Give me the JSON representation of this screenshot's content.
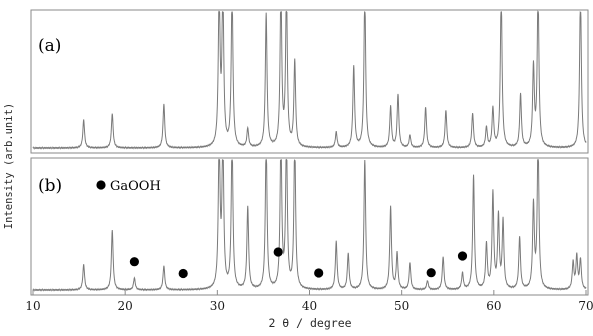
{
  "chart_data": {
    "type": "line",
    "xlabel": "2 θ / degree",
    "ylabel": "Intensity (arb.unit)",
    "xlim": [
      10,
      70
    ],
    "xticks": [
      10,
      20,
      30,
      40,
      50,
      60,
      70
    ],
    "grid": false,
    "panels": [
      {
        "label": "(a)",
        "peaks": [
          {
            "x": 15.5,
            "h": 0.18
          },
          {
            "x": 18.6,
            "h": 0.22
          },
          {
            "x": 24.2,
            "h": 0.28
          },
          {
            "x": 30.2,
            "h": 1.0
          },
          {
            "x": 30.6,
            "h": 1.0
          },
          {
            "x": 31.6,
            "h": 1.0
          },
          {
            "x": 33.3,
            "h": 0.12
          },
          {
            "x": 35.3,
            "h": 0.85
          },
          {
            "x": 36.9,
            "h": 1.0
          },
          {
            "x": 37.5,
            "h": 1.0
          },
          {
            "x": 38.4,
            "h": 0.55
          },
          {
            "x": 42.9,
            "h": 0.1
          },
          {
            "x": 44.8,
            "h": 0.52
          },
          {
            "x": 46.0,
            "h": 1.0
          },
          {
            "x": 48.8,
            "h": 0.26
          },
          {
            "x": 49.6,
            "h": 0.34
          },
          {
            "x": 50.9,
            "h": 0.08
          },
          {
            "x": 52.6,
            "h": 0.26
          },
          {
            "x": 54.8,
            "h": 0.24
          },
          {
            "x": 57.7,
            "h": 0.22
          },
          {
            "x": 59.2,
            "h": 0.13
          },
          {
            "x": 59.9,
            "h": 0.25
          },
          {
            "x": 60.8,
            "h": 1.0
          },
          {
            "x": 62.9,
            "h": 0.34
          },
          {
            "x": 64.3,
            "h": 0.51
          },
          {
            "x": 64.8,
            "h": 1.0
          },
          {
            "x": 69.4,
            "h": 1.0
          }
        ]
      },
      {
        "label": "(b)",
        "legend": "GaOOH",
        "peaks": [
          {
            "x": 15.5,
            "h": 0.17
          },
          {
            "x": 18.6,
            "h": 0.4
          },
          {
            "x": 21.0,
            "h": 0.08
          },
          {
            "x": 24.2,
            "h": 0.16
          },
          {
            "x": 30.2,
            "h": 1.0
          },
          {
            "x": 30.6,
            "h": 1.0
          },
          {
            "x": 31.6,
            "h": 1.0
          },
          {
            "x": 33.3,
            "h": 0.55
          },
          {
            "x": 35.3,
            "h": 1.0
          },
          {
            "x": 36.9,
            "h": 1.0
          },
          {
            "x": 37.5,
            "h": 1.0
          },
          {
            "x": 38.4,
            "h": 1.0
          },
          {
            "x": 42.9,
            "h": 0.32
          },
          {
            "x": 44.2,
            "h": 0.24
          },
          {
            "x": 46.0,
            "h": 0.87
          },
          {
            "x": 48.8,
            "h": 0.55
          },
          {
            "x": 49.5,
            "h": 0.24
          },
          {
            "x": 50.9,
            "h": 0.18
          },
          {
            "x": 52.8,
            "h": 0.06
          },
          {
            "x": 54.5,
            "h": 0.22
          },
          {
            "x": 56.6,
            "h": 0.11
          },
          {
            "x": 57.8,
            "h": 0.76
          },
          {
            "x": 59.2,
            "h": 0.3
          },
          {
            "x": 59.9,
            "h": 0.64
          },
          {
            "x": 60.5,
            "h": 0.48
          },
          {
            "x": 61.0,
            "h": 0.45
          },
          {
            "x": 62.8,
            "h": 0.35
          },
          {
            "x": 64.3,
            "h": 0.56
          },
          {
            "x": 64.8,
            "h": 1.0
          },
          {
            "x": 68.6,
            "h": 0.18
          },
          {
            "x": 69.0,
            "h": 0.22
          },
          {
            "x": 69.4,
            "h": 0.2
          }
        ],
        "markers": [
          {
            "x": 21.0,
            "label": "GaOOH"
          },
          {
            "x": 26.3,
            "label": "GaOOH"
          },
          {
            "x": 36.6,
            "label": "GaOOH"
          },
          {
            "x": 41.0,
            "label": "GaOOH"
          },
          {
            "x": 53.2,
            "label": "GaOOH"
          },
          {
            "x": 56.6,
            "label": "GaOOH"
          }
        ]
      }
    ]
  },
  "colors": {
    "trace": "#7a7a7a",
    "frame": "#8a8a8a",
    "marker": "#000000"
  }
}
